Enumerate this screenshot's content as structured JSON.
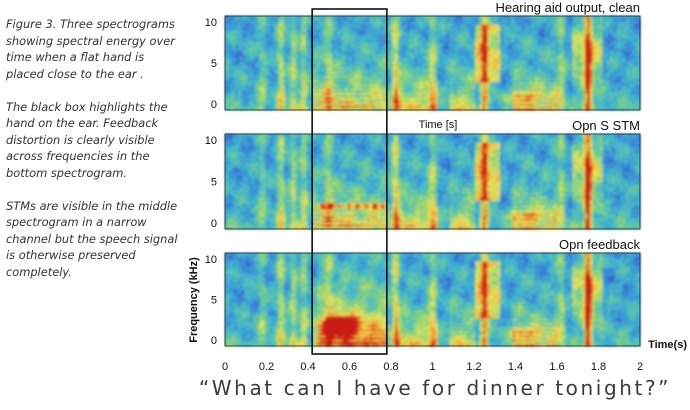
{
  "caption": {
    "paragraphs": [
      "Figure 3. Three spectrograms showing spectral energy over time when a flat hand is placed close to the ear .",
      "The black box highlights the hand on the ear. Feedback distortion is clearly visible across frequencies in the bottom spectrogram.",
      "STMs are visible in the middle spectrogram in a narrow channel but  the speech signal is otherwise preserved completely."
    ]
  },
  "quote": "“What can I have for dinner tonight?”",
  "chart_data": {
    "type": "heatmap",
    "xlabel": "Time(s)",
    "ylabel": "Frequency (kHz)",
    "xlim": [
      0,
      2
    ],
    "ylim": [
      0,
      10
    ],
    "x_ticks": [
      "0",
      "0.2",
      "0.4",
      "0.6",
      "0.8",
      "1",
      "1.2",
      "1.4",
      "1.6",
      "1.8",
      "2"
    ],
    "y_ticks": [
      "0",
      "5",
      "10"
    ],
    "partial_label": "Time [s]",
    "highlight_box": {
      "x_start": 0.42,
      "x_end": 0.78
    },
    "colormap": [
      "#1b3a9e",
      "#3a7ad8",
      "#3fb7cf",
      "#7fd07f",
      "#e9e45a",
      "#f19a30",
      "#c91e16"
    ],
    "panels": [
      {
        "title": "Hearing aid output, clean"
      },
      {
        "title": "Opn S STM"
      },
      {
        "title": "Opn feedback"
      }
    ]
  }
}
